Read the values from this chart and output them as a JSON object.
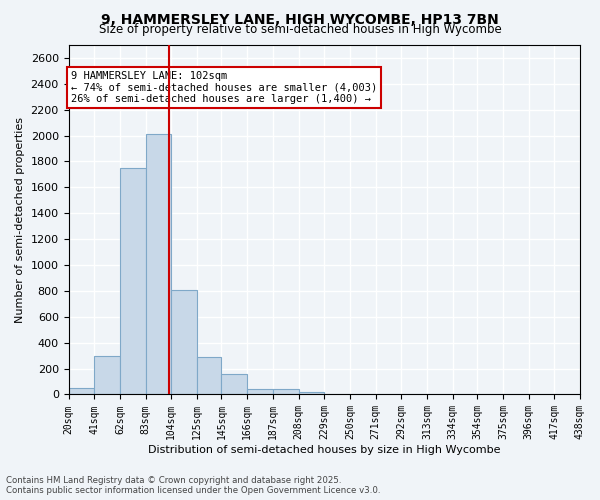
{
  "title_line1": "9, HAMMERSLEY LANE, HIGH WYCOMBE, HP13 7BN",
  "title_line2": "Size of property relative to semi-detached houses in High Wycombe",
  "xlabel": "Distribution of semi-detached houses by size in High Wycombe",
  "ylabel": "Number of semi-detached properties",
  "property_size": 102,
  "property_label": "9 HAMMERSLEY LANE: 102sqm",
  "annotation_line1": "← 74% of semi-detached houses are smaller (4,003)",
  "annotation_line2": "26% of semi-detached houses are larger (1,400) →",
  "bin_edges": [
    20,
    41,
    62,
    83,
    104,
    125,
    145,
    166,
    187,
    208,
    229,
    250,
    271,
    292,
    313,
    334,
    354,
    375,
    396,
    417,
    438
  ],
  "bin_labels": [
    "20sqm",
    "41sqm",
    "62sqm",
    "83sqm",
    "104sqm",
    "125sqm",
    "145sqm",
    "166sqm",
    "187sqm",
    "208sqm",
    "229sqm",
    "250sqm",
    "271sqm",
    "292sqm",
    "313sqm",
    "334sqm",
    "354sqm",
    "375sqm",
    "396sqm",
    "417sqm",
    "438sqm"
  ],
  "counts": [
    50,
    300,
    1750,
    2010,
    810,
    290,
    160,
    40,
    40,
    20,
    0,
    0,
    0,
    0,
    0,
    0,
    0,
    0,
    0,
    0
  ],
  "bar_color": "#c8d8e8",
  "bar_edge_color": "#7fa8c8",
  "vline_x": 102,
  "vline_color": "#cc0000",
  "ylim": [
    0,
    2700
  ],
  "yticks": [
    0,
    200,
    400,
    600,
    800,
    1000,
    1200,
    1400,
    1600,
    1800,
    2000,
    2200,
    2400,
    2600
  ],
  "background_color": "#f0f4f8",
  "grid_color": "#ffffff",
  "footer_line1": "Contains HM Land Registry data © Crown copyright and database right 2025.",
  "footer_line2": "Contains public sector information licensed under the Open Government Licence v3.0."
}
